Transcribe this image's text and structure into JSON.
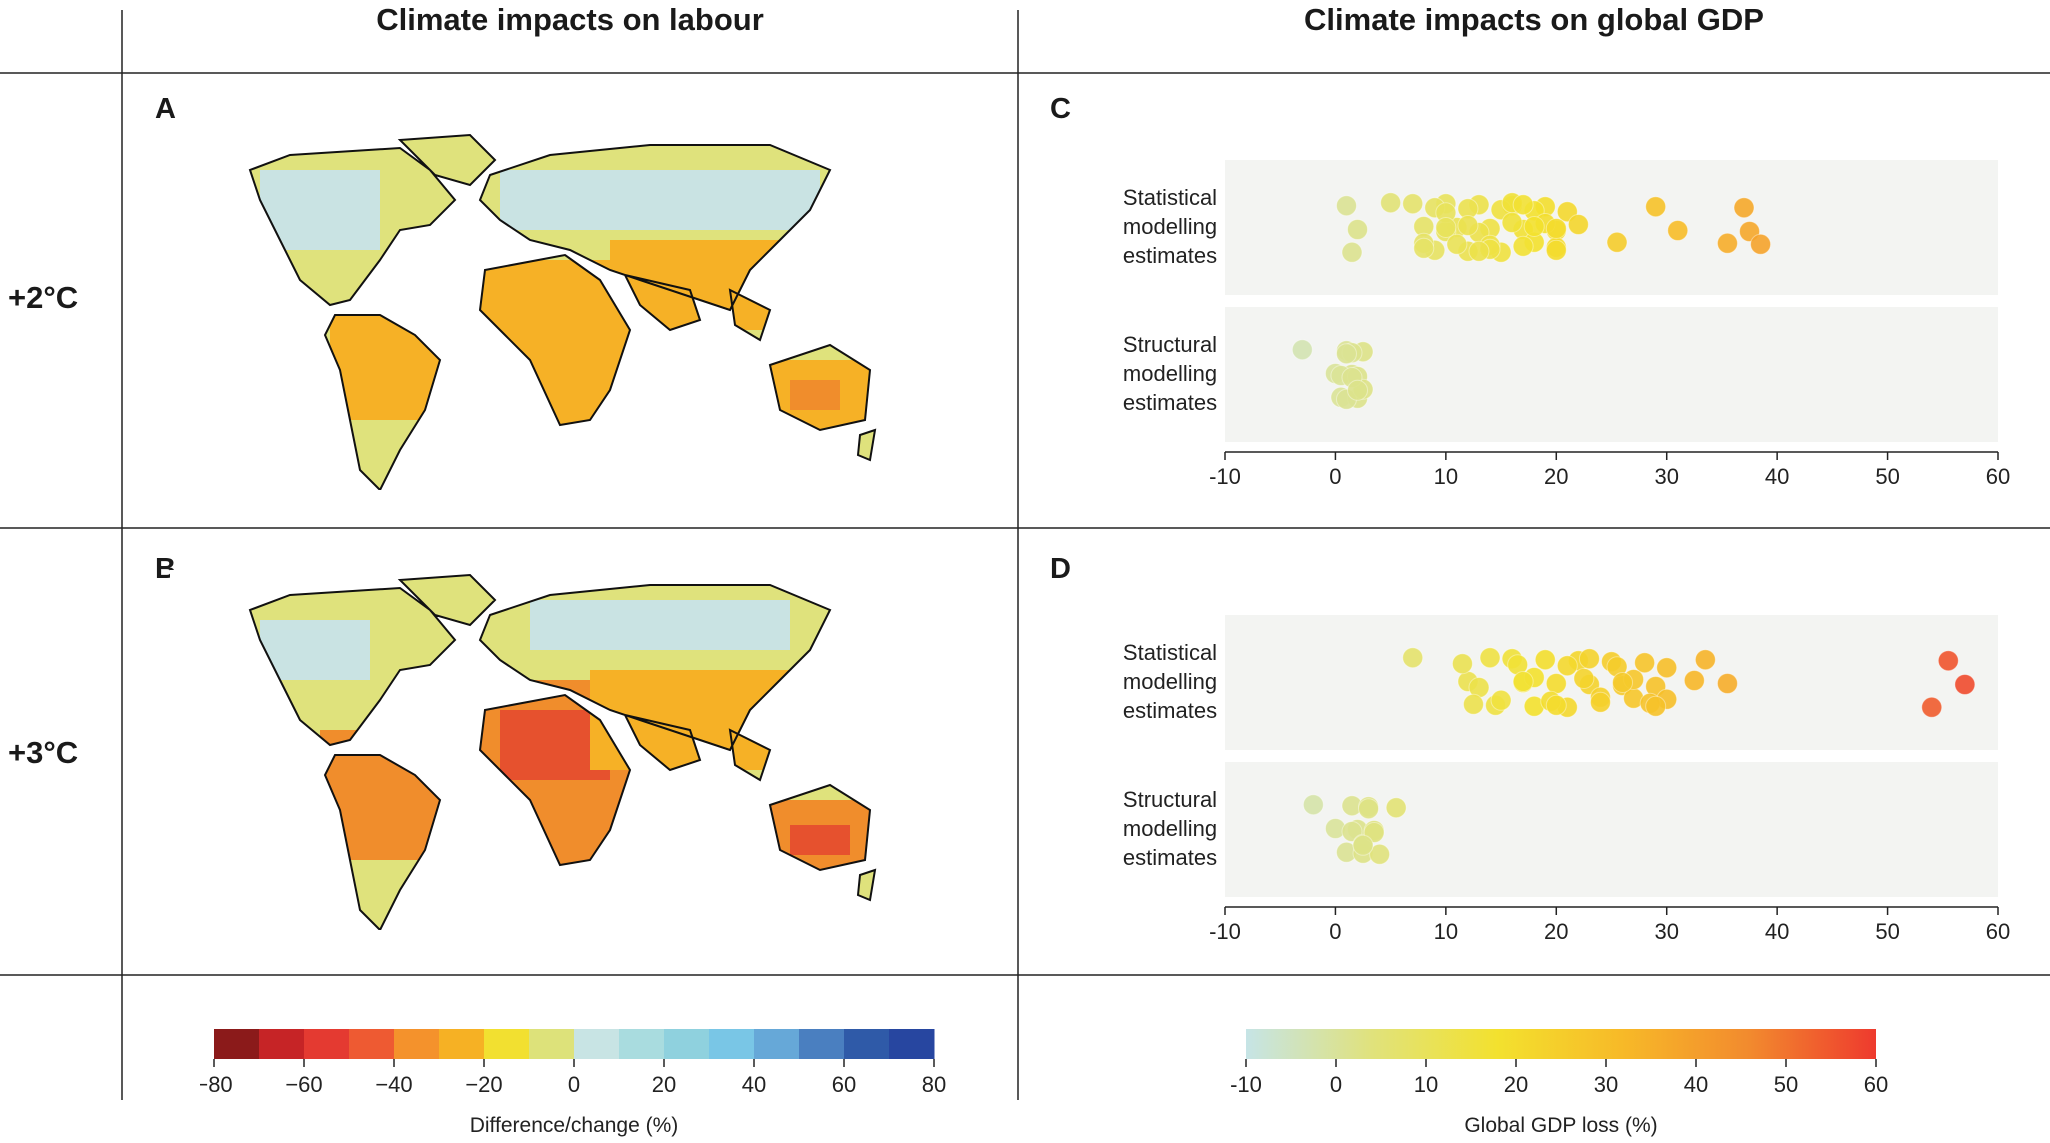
{
  "headers": {
    "left": "Climate impacts on labour",
    "right": "Climate impacts on global GDP"
  },
  "rows": [
    {
      "label": "+2°C"
    },
    {
      "label": "+3°C"
    }
  ],
  "panel_labels": {
    "a": "A",
    "b": "B",
    "c": "C",
    "d": "D"
  },
  "labour_legend": {
    "label": "Difference/change (%)",
    "ticks": [
      "−80",
      "−60",
      "−40",
      "−20",
      "0",
      "20",
      "40",
      "60",
      "80"
    ],
    "colors": [
      "#8b1a1a",
      "#c62426",
      "#e43a31",
      "#ee5a32",
      "#f4922c",
      "#f6b124",
      "#f2e030",
      "#dde27a",
      "#c8e4e4",
      "#a9dcdf",
      "#8fd1de",
      "#79c6e6",
      "#66a8d8",
      "#4a7fc0",
      "#2f5aa8",
      "#2746a0"
    ]
  },
  "gdp_legend": {
    "label": "Global GDP loss (%)",
    "ticks": [
      "-10",
      "0",
      "10",
      "20",
      "30",
      "40",
      "50",
      "60"
    ],
    "gradient": [
      "#c6e4e6",
      "#e0e27c",
      "#f3e12e",
      "#f7b928",
      "#f28a2e",
      "#ee3a2e"
    ]
  },
  "map_colors": {
    "ocean": "#ffffff",
    "cool": "#c9e3e3",
    "neutral": "#dfe27c",
    "warm": "#f6b126",
    "hot": "#f08d2c",
    "hotter": "#e6512e"
  },
  "chart_data": [
    {
      "type": "scatter",
      "panel": "C",
      "title": "+2°C",
      "xlabel": "",
      "xlim": [
        -10,
        60
      ],
      "xticks": [
        "-10",
        "0",
        "10",
        "20",
        "30",
        "40",
        "50",
        "60"
      ],
      "categories": [
        "Statistical modelling estimates",
        "Structural modelling estimates"
      ],
      "category_lines": [
        [
          "Statistical",
          "modelling",
          "estimates"
        ],
        [
          "Structural",
          "modelling",
          "estimates"
        ]
      ],
      "series": [
        {
          "name": "Statistical modelling estimates",
          "values": [
            5,
            8,
            9,
            10,
            11,
            12,
            13,
            14,
            15,
            16,
            17,
            18,
            19,
            20,
            8,
            9,
            10,
            11,
            12,
            13,
            14,
            15,
            16,
            17,
            18,
            19,
            20,
            21,
            22,
            8,
            10,
            12,
            14,
            16,
            18,
            20,
            7,
            10,
            13,
            17,
            20,
            1.5,
            1,
            2,
            25.5,
            29,
            31,
            35.5,
            37,
            37.5,
            38.5
          ],
          "color_by_value": true
        },
        {
          "name": "Structural modelling estimates",
          "values": [
            -3,
            0,
            0.5,
            1,
            1.5,
            2,
            2.5,
            0.5,
            1,
            1.5,
            2,
            2.5,
            1,
            1.5,
            2
          ],
          "color_by_value": true
        }
      ]
    },
    {
      "type": "scatter",
      "panel": "D",
      "title": "+3°C",
      "xlabel": "Global GDP loss (%)",
      "xlim": [
        -10,
        60
      ],
      "xticks": [
        "-10",
        "0",
        "10",
        "20",
        "30",
        "40",
        "50",
        "60"
      ],
      "categories": [
        "Statistical modelling estimates",
        "Structural modelling estimates"
      ],
      "category_lines": [
        [
          "Statistical",
          "modelling",
          "estimates"
        ],
        [
          "Structural",
          "modelling",
          "estimates"
        ]
      ],
      "series": [
        {
          "name": "Statistical modelling estimates",
          "values": [
            7,
            12,
            14.5,
            16,
            17,
            18,
            19,
            20,
            21,
            22,
            23,
            24,
            25,
            26,
            27,
            28,
            29,
            30,
            11.5,
            13,
            15,
            16.5,
            18,
            19.5,
            21,
            22.5,
            24,
            25.5,
            27,
            28.5,
            30,
            32.5,
            12.5,
            14,
            17,
            20,
            23,
            26,
            29,
            33.5,
            35.5,
            54,
            55.5,
            57
          ],
          "color_by_value": true
        },
        {
          "name": "Structural modelling estimates",
          "values": [
            -2,
            0,
            1,
            1.5,
            2,
            2.5,
            3,
            3.5,
            4,
            5.5,
            1.5,
            2.5,
            3,
            3.5,
            2.5
          ],
          "color_by_value": true
        }
      ]
    }
  ]
}
